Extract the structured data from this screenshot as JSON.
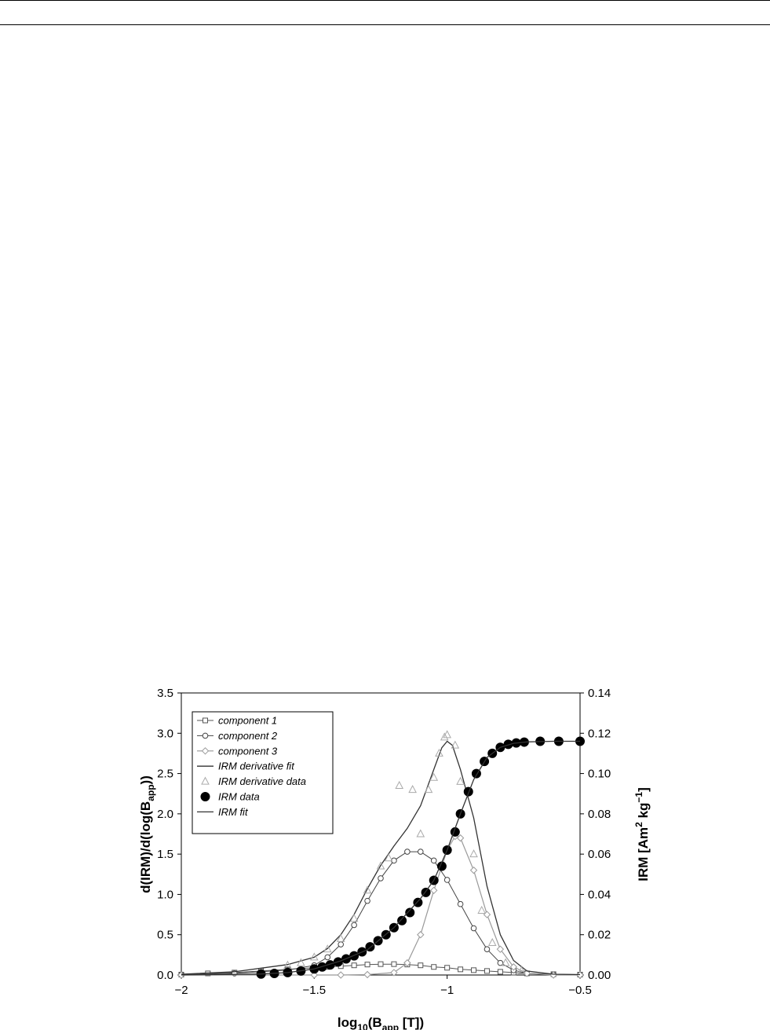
{
  "chart_data": {
    "type": "line",
    "xlabel": "log10(Bapp [T])",
    "ylabel_left": "d(IRM)/d(log(Bapp))",
    "ylabel_right": "IRM [Am2 kg-1]",
    "xlim": [
      -2,
      -0.5
    ],
    "ylim_left": [
      0,
      3.5
    ],
    "ylim_right": [
      0,
      0.14
    ],
    "x_ticks": [
      "−2",
      "−1.5",
      "−1",
      "−0.5"
    ],
    "y_left_ticks": [
      "0.0",
      "0.5",
      "1.0",
      "1.5",
      "2.0",
      "2.5",
      "3.0",
      "3.5"
    ],
    "y_right_ticks": [
      "0.00",
      "0.02",
      "0.04",
      "0.06",
      "0.08",
      "0.10",
      "0.12",
      "0.14"
    ],
    "grid": false,
    "legend": {
      "position": "top-left"
    },
    "series": [
      {
        "name": "component 1",
        "axis": "left",
        "style": "line-square",
        "points": [
          [
            -2,
            0.005
          ],
          [
            -1.9,
            0.02
          ],
          [
            -1.8,
            0.03
          ],
          [
            -1.7,
            0.05
          ],
          [
            -1.6,
            0.07
          ],
          [
            -1.5,
            0.09
          ],
          [
            -1.45,
            0.1
          ],
          [
            -1.4,
            0.11
          ],
          [
            -1.35,
            0.12
          ],
          [
            -1.3,
            0.13
          ],
          [
            -1.25,
            0.135
          ],
          [
            -1.2,
            0.135
          ],
          [
            -1.15,
            0.13
          ],
          [
            -1.1,
            0.12
          ],
          [
            -1.05,
            0.1
          ],
          [
            -1.0,
            0.09
          ],
          [
            -0.95,
            0.07
          ],
          [
            -0.9,
            0.06
          ],
          [
            -0.85,
            0.05
          ],
          [
            -0.8,
            0.04
          ],
          [
            -0.75,
            0.03
          ],
          [
            -0.7,
            0.02
          ],
          [
            -0.6,
            0.01
          ],
          [
            -0.5,
            0.005
          ]
        ]
      },
      {
        "name": "component 2",
        "axis": "left",
        "style": "line-circle",
        "points": [
          [
            -2,
            0.005
          ],
          [
            -1.8,
            0.02
          ],
          [
            -1.6,
            0.06
          ],
          [
            -1.5,
            0.12
          ],
          [
            -1.45,
            0.22
          ],
          [
            -1.4,
            0.38
          ],
          [
            -1.35,
            0.62
          ],
          [
            -1.3,
            0.92
          ],
          [
            -1.25,
            1.2
          ],
          [
            -1.2,
            1.42
          ],
          [
            -1.15,
            1.53
          ],
          [
            -1.1,
            1.53
          ],
          [
            -1.05,
            1.42
          ],
          [
            -1.0,
            1.18
          ],
          [
            -0.95,
            0.88
          ],
          [
            -0.9,
            0.58
          ],
          [
            -0.85,
            0.32
          ],
          [
            -0.8,
            0.15
          ],
          [
            -0.75,
            0.06
          ],
          [
            -0.7,
            0.02
          ],
          [
            -0.6,
            0.005
          ],
          [
            -0.5,
            0.0
          ]
        ]
      },
      {
        "name": "component 3",
        "axis": "left",
        "style": "line-diamond",
        "points": [
          [
            -2,
            0.0
          ],
          [
            -1.5,
            0.0
          ],
          [
            -1.4,
            0.0
          ],
          [
            -1.3,
            0.005
          ],
          [
            -1.2,
            0.03
          ],
          [
            -1.15,
            0.15
          ],
          [
            -1.1,
            0.5
          ],
          [
            -1.05,
            1.05
          ],
          [
            -1.0,
            1.55
          ],
          [
            -0.97,
            1.72
          ],
          [
            -0.95,
            1.7
          ],
          [
            -0.9,
            1.3
          ],
          [
            -0.85,
            0.75
          ],
          [
            -0.8,
            0.32
          ],
          [
            -0.75,
            0.1
          ],
          [
            -0.7,
            0.02
          ],
          [
            -0.6,
            0.0
          ],
          [
            -0.5,
            0.0
          ]
        ]
      },
      {
        "name": "IRM derivative fit",
        "axis": "left",
        "style": "line",
        "points": [
          [
            -2,
            0.01
          ],
          [
            -1.8,
            0.04
          ],
          [
            -1.6,
            0.13
          ],
          [
            -1.5,
            0.22
          ],
          [
            -1.45,
            0.33
          ],
          [
            -1.4,
            0.5
          ],
          [
            -1.35,
            0.75
          ],
          [
            -1.3,
            1.07
          ],
          [
            -1.25,
            1.36
          ],
          [
            -1.2,
            1.6
          ],
          [
            -1.15,
            1.82
          ],
          [
            -1.1,
            2.1
          ],
          [
            -1.05,
            2.55
          ],
          [
            -1.02,
            2.82
          ],
          [
            -1.0,
            2.9
          ],
          [
            -0.98,
            2.85
          ],
          [
            -0.95,
            2.55
          ],
          [
            -0.9,
            1.95
          ],
          [
            -0.85,
            1.1
          ],
          [
            -0.8,
            0.5
          ],
          [
            -0.75,
            0.18
          ],
          [
            -0.7,
            0.05
          ],
          [
            -0.6,
            0.01
          ],
          [
            -0.5,
            0.005
          ]
        ]
      },
      {
        "name": "IRM derivative data",
        "axis": "left",
        "style": "marker-triangle",
        "points": [
          [
            -1.6,
            0.12
          ],
          [
            -1.55,
            0.15
          ],
          [
            -1.5,
            0.22
          ],
          [
            -1.45,
            0.32
          ],
          [
            -1.4,
            0.45
          ],
          [
            -1.35,
            0.7
          ],
          [
            -1.3,
            1.05
          ],
          [
            -1.25,
            1.35
          ],
          [
            -1.22,
            1.45
          ],
          [
            -1.18,
            2.35
          ],
          [
            -1.13,
            2.3
          ],
          [
            -1.1,
            1.75
          ],
          [
            -1.07,
            2.3
          ],
          [
            -1.05,
            2.45
          ],
          [
            -1.03,
            2.75
          ],
          [
            -1.01,
            2.95
          ],
          [
            -1.0,
            2.98
          ],
          [
            -0.97,
            2.85
          ],
          [
            -0.95,
            2.4
          ],
          [
            -0.9,
            1.5
          ],
          [
            -0.87,
            0.8
          ],
          [
            -0.83,
            0.4
          ],
          [
            -0.78,
            0.15
          ],
          [
            -0.72,
            0.05
          ]
        ]
      },
      {
        "name": "IRM data",
        "axis": "right",
        "style": "marker-dot",
        "points": [
          [
            -1.7,
            0.0005
          ],
          [
            -1.65,
            0.0008
          ],
          [
            -1.6,
            0.0012
          ],
          [
            -1.55,
            0.002
          ],
          [
            -1.5,
            0.003
          ],
          [
            -1.47,
            0.004
          ],
          [
            -1.44,
            0.005
          ],
          [
            -1.41,
            0.0065
          ],
          [
            -1.38,
            0.008
          ],
          [
            -1.35,
            0.0095
          ],
          [
            -1.32,
            0.0115
          ],
          [
            -1.29,
            0.014
          ],
          [
            -1.26,
            0.017
          ],
          [
            -1.23,
            0.02
          ],
          [
            -1.2,
            0.0235
          ],
          [
            -1.17,
            0.027
          ],
          [
            -1.14,
            0.031
          ],
          [
            -1.11,
            0.036
          ],
          [
            -1.08,
            0.041
          ],
          [
            -1.05,
            0.047
          ],
          [
            -1.02,
            0.054
          ],
          [
            -1.0,
            0.062
          ],
          [
            -0.97,
            0.071
          ],
          [
            -0.95,
            0.08
          ],
          [
            -0.92,
            0.091
          ],
          [
            -0.89,
            0.1
          ],
          [
            -0.86,
            0.106
          ],
          [
            -0.83,
            0.11
          ],
          [
            -0.8,
            0.113
          ],
          [
            -0.77,
            0.1145
          ],
          [
            -0.74,
            0.1152
          ],
          [
            -0.71,
            0.1156
          ],
          [
            -0.65,
            0.116
          ],
          [
            -0.58,
            0.116
          ],
          [
            -0.5,
            0.116
          ]
        ]
      },
      {
        "name": "IRM fit",
        "axis": "right",
        "style": "line",
        "points": [
          [
            -2,
            0.0
          ],
          [
            -1.8,
            0.0003
          ],
          [
            -1.7,
            0.0005
          ],
          [
            -1.6,
            0.0012
          ],
          [
            -1.5,
            0.003
          ],
          [
            -1.4,
            0.007
          ],
          [
            -1.3,
            0.0125
          ],
          [
            -1.2,
            0.0235
          ],
          [
            -1.1,
            0.038
          ],
          [
            -1.05,
            0.047
          ],
          [
            -1.0,
            0.062
          ],
          [
            -0.95,
            0.08
          ],
          [
            -0.9,
            0.097
          ],
          [
            -0.85,
            0.108
          ],
          [
            -0.8,
            0.113
          ],
          [
            -0.75,
            0.115
          ],
          [
            -0.7,
            0.1157
          ],
          [
            -0.6,
            0.116
          ],
          [
            -0.5,
            0.116
          ]
        ]
      }
    ]
  }
}
